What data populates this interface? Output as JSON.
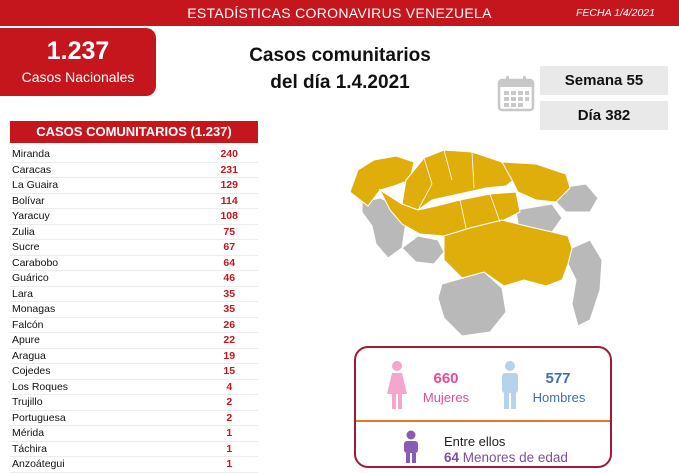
{
  "header": {
    "title": "ESTADÍSTICAS CORONAVIRUS VENEZUELA",
    "date": "FECHA 1/4/2021"
  },
  "national": {
    "count": "1.237",
    "label": "Casos Nacionales"
  },
  "heading": {
    "line1": "Casos comunitarios",
    "line2": "del día 1.4.2021"
  },
  "week": {
    "semana": "Semana 55",
    "dia": "Día 382"
  },
  "table": {
    "title": "CASOS COMUNITARIOS (1.237)",
    "rows": [
      {
        "name": "Miranda",
        "value": "240"
      },
      {
        "name": "Caracas",
        "value": "231"
      },
      {
        "name": "La Guaira",
        "value": "129"
      },
      {
        "name": "Bolívar",
        "value": "114"
      },
      {
        "name": "Yaracuy",
        "value": "108"
      },
      {
        "name": "Zulia",
        "value": "75"
      },
      {
        "name": "Sucre",
        "value": "67"
      },
      {
        "name": "Carabobo",
        "value": "64"
      },
      {
        "name": "Guárico",
        "value": "46"
      },
      {
        "name": "Lara",
        "value": "35"
      },
      {
        "name": "Monagas",
        "value": "35"
      },
      {
        "name": "Falcón",
        "value": "26"
      },
      {
        "name": "Apure",
        "value": "22"
      },
      {
        "name": "Aragua",
        "value": "19"
      },
      {
        "name": "Cojedes",
        "value": "15"
      },
      {
        "name": "Los Roques",
        "value": "4"
      },
      {
        "name": "Trujillo",
        "value": "2"
      },
      {
        "name": "Portuguesa",
        "value": "2"
      },
      {
        "name": "Mérida",
        "value": "1"
      },
      {
        "name": "Táchira",
        "value": "1"
      },
      {
        "name": "Anzoátegui",
        "value": "1"
      }
    ]
  },
  "gender": {
    "women_count": "660",
    "women_label": "Mujeres",
    "men_count": "577",
    "men_label": "Hombres",
    "among": "Entre ellos",
    "minors_count": "64",
    "minors_label": "Menores de edad"
  },
  "colors": {
    "brand_red": "#c4161c",
    "map_affected": "#e0ae0a",
    "map_unaffected": "#b9b9b9",
    "women": "#e44c97",
    "men": "#3d6fb1",
    "minors": "#7a4fa0"
  },
  "icons": [
    "calendar-icon",
    "woman-icon",
    "man-icon",
    "child-icon",
    "venezuela-map"
  ]
}
